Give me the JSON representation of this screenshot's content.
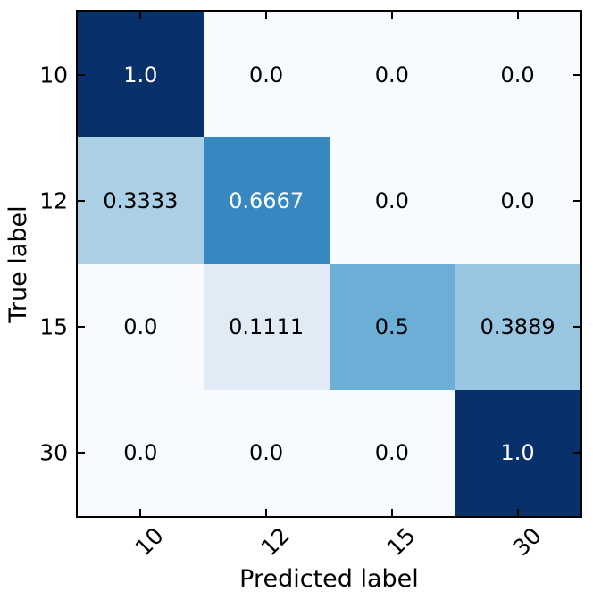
{
  "figure": {
    "background_color": "#ffffff",
    "axis_color": "#000000"
  },
  "chart_data": {
    "type": "heatmap",
    "title": "",
    "xlabel": "Predicted label",
    "ylabel": "True label",
    "colormap": "Blues",
    "value_range": [
      0,
      1
    ],
    "x_tick_labels": [
      "10",
      "12",
      "15",
      "30"
    ],
    "y_tick_labels": [
      "10",
      "12",
      "15",
      "30"
    ],
    "matrix": [
      [
        1.0,
        0.0,
        0.0,
        0.0
      ],
      [
        0.3333,
        0.6667,
        0.0,
        0.0
      ],
      [
        0.0,
        0.1111,
        0.5,
        0.3889
      ],
      [
        0.0,
        0.0,
        0.0,
        1.0
      ]
    ],
    "cell_text": [
      [
        "1.0",
        "0.0",
        "0.0",
        "0.0"
      ],
      [
        "0.3333",
        "0.6667",
        "0.0",
        "0.0"
      ],
      [
        "0.0",
        "0.1111",
        "0.5",
        "0.3889"
      ],
      [
        "0.0",
        "0.0",
        "0.0",
        "1.0"
      ]
    ],
    "cell_colors": [
      [
        "#08306b",
        "#f7fbff",
        "#f7fbff",
        "#f7fbff"
      ],
      [
        "#abd0e6",
        "#3787c0",
        "#f7fbff",
        "#f7fbff"
      ],
      [
        "#f7fbff",
        "#e0ebf5",
        "#6baed6",
        "#98c6e1"
      ],
      [
        "#f7fbff",
        "#f7fbff",
        "#f7fbff",
        "#08306b"
      ]
    ],
    "cell_text_colors": [
      [
        "#ffffff",
        "#000000",
        "#000000",
        "#000000"
      ],
      [
        "#000000",
        "#ffffff",
        "#000000",
        "#000000"
      ],
      [
        "#000000",
        "#000000",
        "#000000",
        "#000000"
      ],
      [
        "#000000",
        "#000000",
        "#000000",
        "#ffffff"
      ]
    ],
    "grid": false,
    "legend": "none",
    "tick_direction": "in"
  }
}
